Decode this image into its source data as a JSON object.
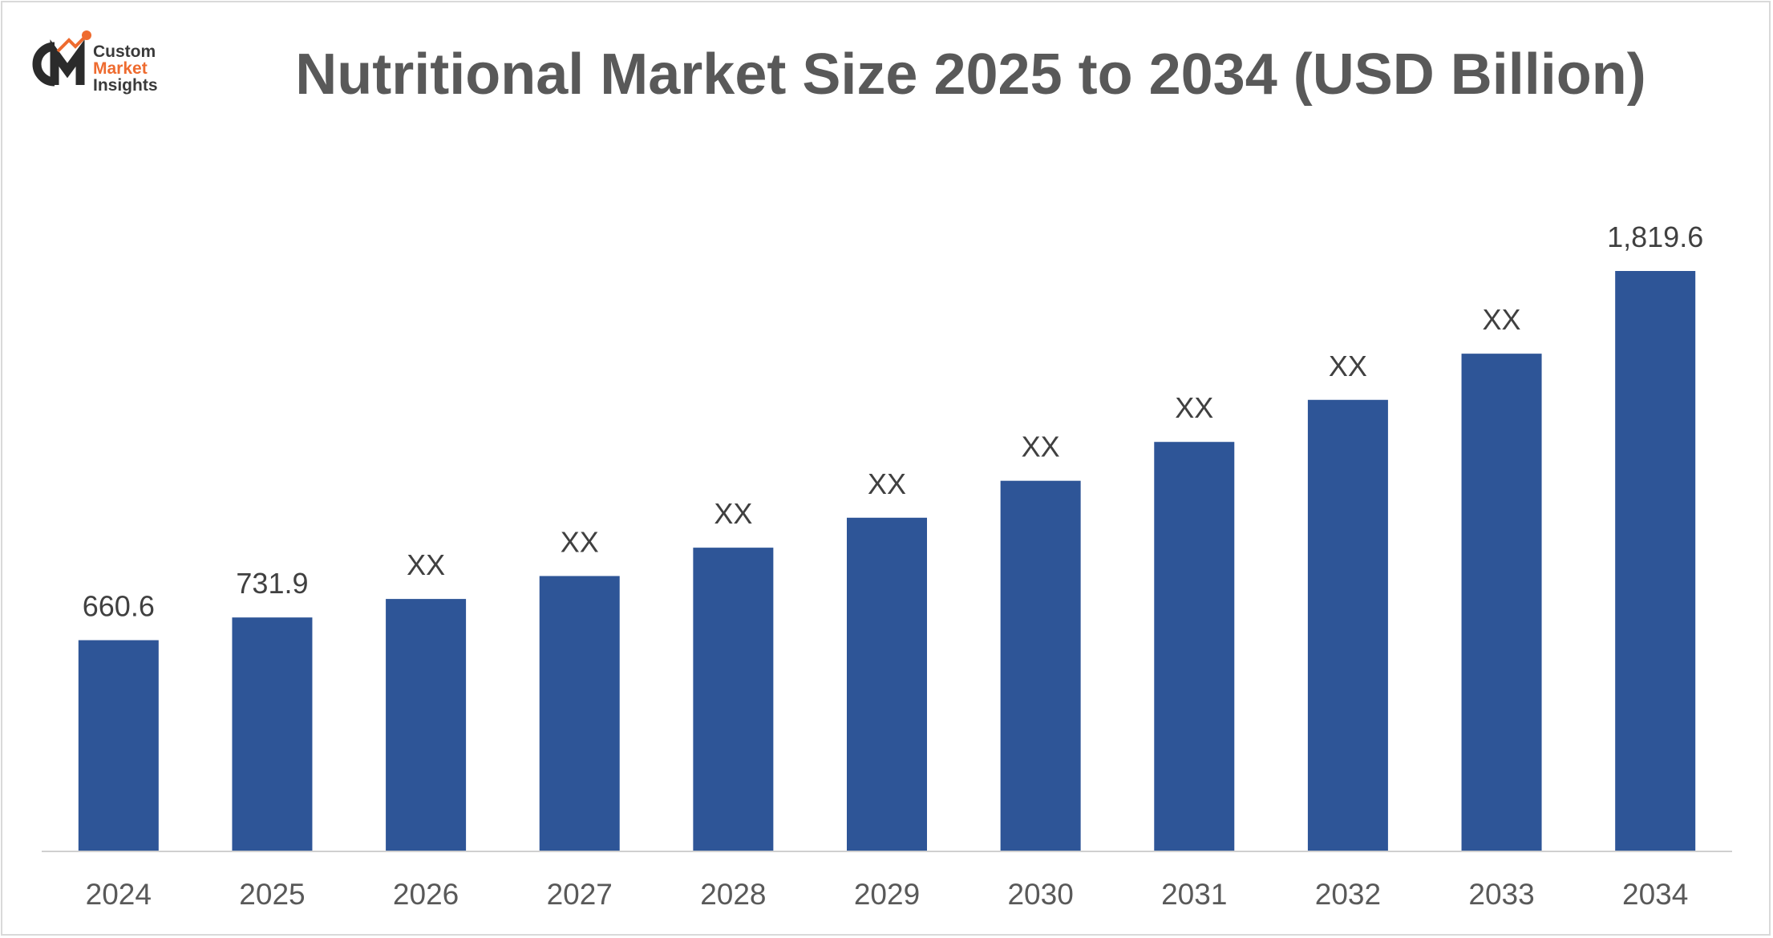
{
  "logo": {
    "line1": "Custom",
    "line2": "Market",
    "line3": "Insights"
  },
  "colors": {
    "bar": "#2e5597",
    "axis": "#d0d0d0",
    "title": "#595959",
    "logo_accent": "#ee6b2f"
  },
  "chart_data": {
    "type": "bar",
    "title": "Nutritional Market Size 2025 to 2034 (USD Billion)",
    "xlabel": "",
    "ylabel": "",
    "grid": false,
    "legend": "none",
    "ylim": [
      0,
      1819.6
    ],
    "categories": [
      "2024",
      "2025",
      "2026",
      "2027",
      "2028",
      "2029",
      "2030",
      "2031",
      "2032",
      "2033",
      "2034"
    ],
    "values": [
      660.6,
      731.9,
      790,
      862,
      951,
      1045,
      1161,
      1283,
      1415,
      1560,
      1819.6
    ],
    "data_labels": [
      "660.6",
      "731.9",
      "XX",
      "XX",
      "XX",
      "XX",
      "XX",
      "XX",
      "XX",
      "XX",
      "1,819.6"
    ]
  }
}
